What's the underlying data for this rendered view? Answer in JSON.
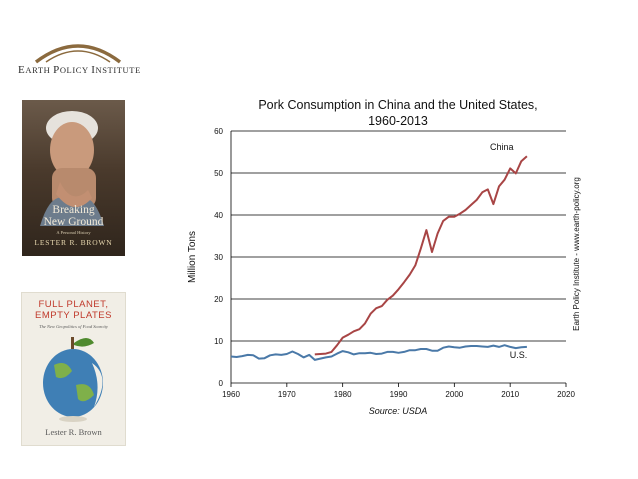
{
  "logo": {
    "first": "E",
    "rest": "ARTH ",
    "p": "P",
    "olicy": "OLICY ",
    "i": "I",
    "nstitute": "NSTITUTE"
  },
  "books": [
    {
      "title_line1": "Breaking",
      "title_line2": "New Ground",
      "subtitle": "A Personal History",
      "author": "LESTER R. BROWN"
    },
    {
      "title_line1": "FULL PLANET,",
      "title_line2": "EMPTY PLATES",
      "subtitle": "The New Geopolitics of Food Scarcity",
      "author": "Lester R. Brown"
    }
  ],
  "chart_data": {
    "type": "line",
    "title_line1": "Pork Consumption in China and the United States,",
    "title_line2": "1960-2013",
    "ylabel": "Million Tons",
    "source": "Source: USDA",
    "side_note": "Earth Policy Institute - www.earth-policy.org",
    "xlim": [
      1960,
      2020
    ],
    "ylim": [
      0,
      60
    ],
    "xticks": [
      1960,
      1970,
      1980,
      1990,
      2000,
      2010,
      2020
    ],
    "yticks": [
      0,
      10,
      20,
      30,
      40,
      50,
      60
    ],
    "series": [
      {
        "name": "China",
        "color": "#a84545",
        "x": [
          1975,
          1976,
          1977,
          1978,
          1979,
          1980,
          1981,
          1982,
          1983,
          1984,
          1985,
          1986,
          1987,
          1988,
          1989,
          1990,
          1991,
          1992,
          1993,
          1994,
          1995,
          1996,
          1997,
          1998,
          1999,
          2000,
          2001,
          2002,
          2003,
          2004,
          2005,
          2006,
          2007,
          2008,
          2009,
          2010,
          2011,
          2012,
          2013
        ],
        "y": [
          6.8,
          6.9,
          7.0,
          7.4,
          9.0,
          10.8,
          11.5,
          12.3,
          12.8,
          14.2,
          16.5,
          17.8,
          18.3,
          19.8,
          20.8,
          22.3,
          24.0,
          25.8,
          28.0,
          32.0,
          36.4,
          31.2,
          35.6,
          38.6,
          39.6,
          39.6,
          40.3,
          41.2,
          42.4,
          43.6,
          45.4,
          46.1,
          42.6,
          46.8,
          48.4,
          51.1,
          49.9,
          52.8,
          54.0
        ]
      },
      {
        "name": "U.S.",
        "color": "#4a79a8",
        "x": [
          1960,
          1961,
          1962,
          1963,
          1964,
          1965,
          1966,
          1967,
          1968,
          1969,
          1970,
          1971,
          1972,
          1973,
          1974,
          1975,
          1976,
          1977,
          1978,
          1979,
          1980,
          1981,
          1982,
          1983,
          1984,
          1985,
          1986,
          1987,
          1988,
          1989,
          1990,
          1991,
          1992,
          1993,
          1994,
          1995,
          1996,
          1997,
          1998,
          1999,
          2000,
          2001,
          2002,
          2003,
          2004,
          2005,
          2006,
          2007,
          2008,
          2009,
          2010,
          2011,
          2012,
          2013
        ],
        "y": [
          6.3,
          6.2,
          6.4,
          6.7,
          6.6,
          5.8,
          5.9,
          6.6,
          6.8,
          6.7,
          6.9,
          7.5,
          6.9,
          6.1,
          6.7,
          5.5,
          5.8,
          6.1,
          6.3,
          7.0,
          7.6,
          7.3,
          6.8,
          7.1,
          7.1,
          7.2,
          6.9,
          7.0,
          7.4,
          7.4,
          7.2,
          7.4,
          7.8,
          7.8,
          8.1,
          8.1,
          7.7,
          7.7,
          8.4,
          8.7,
          8.5,
          8.4,
          8.7,
          8.8,
          8.8,
          8.7,
          8.6,
          8.9,
          8.6,
          9.0,
          8.6,
          8.3,
          8.5,
          8.6
        ]
      }
    ]
  }
}
